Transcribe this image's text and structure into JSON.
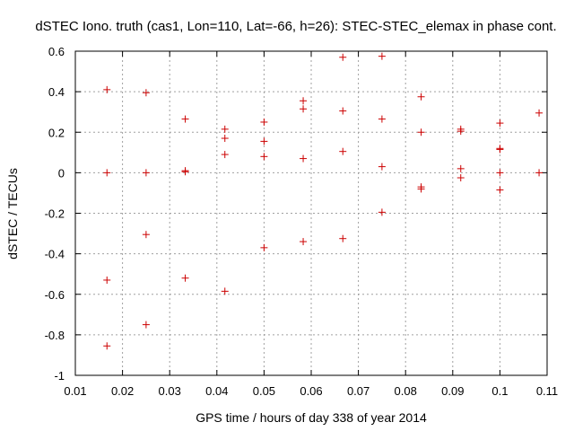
{
  "chart_data": {
    "type": "scatter",
    "title": "dSTEC Iono. truth (cas1, Lon=110, Lat=-66, h=26): STEC-STEC_elemax in phase cont.",
    "xlabel": "GPS time / hours of day 338 of year 2014",
    "ylabel": "dSTEC  / TECUs",
    "xlim": [
      0.01,
      0.11
    ],
    "ylim": [
      -1,
      0.6
    ],
    "xticks": [
      "0.01",
      "0.02",
      "0.03",
      "0.04",
      "0.05",
      "0.06",
      "0.07",
      "0.08",
      "0.09",
      "0.1",
      "0.11"
    ],
    "yticks": [
      "-1",
      "-0.8",
      "-0.6",
      "-0.4",
      "-0.2",
      "0",
      "0.2",
      "0.4",
      "0.6"
    ],
    "grid": true,
    "marker": "+",
    "color": "#cc0000",
    "points": [
      [
        0.0167,
        0.41
      ],
      [
        0.0167,
        0.0
      ],
      [
        0.0167,
        -0.53
      ],
      [
        0.0167,
        -0.855
      ],
      [
        0.025,
        0.395
      ],
      [
        0.025,
        0.0
      ],
      [
        0.025,
        -0.305
      ],
      [
        0.025,
        -0.75
      ],
      [
        0.0333,
        0.265
      ],
      [
        0.0333,
        0.01
      ],
      [
        0.0333,
        0.005
      ],
      [
        0.0333,
        -0.52
      ],
      [
        0.0417,
        0.215
      ],
      [
        0.0417,
        0.17
      ],
      [
        0.0417,
        0.09
      ],
      [
        0.0417,
        -0.585
      ],
      [
        0.05,
        0.25
      ],
      [
        0.05,
        0.155
      ],
      [
        0.05,
        0.08
      ],
      [
        0.05,
        -0.37
      ],
      [
        0.0583,
        0.355
      ],
      [
        0.0583,
        0.315
      ],
      [
        0.0583,
        0.07
      ],
      [
        0.0583,
        -0.34
      ],
      [
        0.0667,
        0.57
      ],
      [
        0.0667,
        0.305
      ],
      [
        0.0667,
        0.105
      ],
      [
        0.0667,
        -0.325
      ],
      [
        0.075,
        0.575
      ],
      [
        0.075,
        0.265
      ],
      [
        0.075,
        0.03
      ],
      [
        0.075,
        -0.195
      ],
      [
        0.0833,
        0.375
      ],
      [
        0.0833,
        0.2
      ],
      [
        0.0833,
        -0.07
      ],
      [
        0.0833,
        -0.08
      ],
      [
        0.0917,
        0.215
      ],
      [
        0.0917,
        0.205
      ],
      [
        0.0917,
        0.02
      ],
      [
        0.0917,
        -0.025
      ],
      [
        0.1,
        0.245
      ],
      [
        0.1,
        0.12
      ],
      [
        0.1,
        0.115
      ],
      [
        0.1,
        0.0
      ],
      [
        0.1,
        -0.085
      ],
      [
        0.1083,
        0.295
      ],
      [
        0.1083,
        0.0
      ]
    ]
  }
}
